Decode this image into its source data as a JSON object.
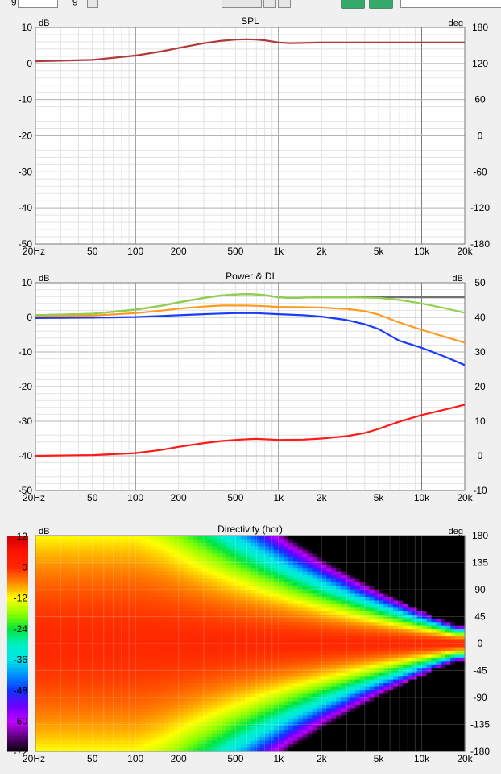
{
  "toolbar": {
    "label1": "g",
    "label2": "g"
  },
  "chart_data": [
    {
      "type": "line",
      "title": "SPL",
      "y_unit": "dB",
      "y2_unit": "deg",
      "x_scale": "log",
      "xlim": [
        20,
        20000
      ],
      "ylim": [
        -50,
        10
      ],
      "y2lim": [
        -180,
        180
      ],
      "x_ticks": [
        {
          "v": 20,
          "label": "20Hz"
        },
        {
          "v": 50,
          "label": "50"
        },
        {
          "v": 100,
          "label": "100"
        },
        {
          "v": 200,
          "label": "200"
        },
        {
          "v": 500,
          "label": "500"
        },
        {
          "v": 1000,
          "label": "1k"
        },
        {
          "v": 2000,
          "label": "2k"
        },
        {
          "v": 5000,
          "label": "5k"
        },
        {
          "v": 10000,
          "label": "10k"
        },
        {
          "v": 20000,
          "label": "20k"
        }
      ],
      "y_ticks": [
        {
          "v": 10,
          "label": "10"
        },
        {
          "v": 0,
          "label": "0"
        },
        {
          "v": -10,
          "label": "-10"
        },
        {
          "v": -20,
          "label": "-20"
        },
        {
          "v": -30,
          "label": "-30"
        },
        {
          "v": -40,
          "label": "-40"
        },
        {
          "v": -50,
          "label": "-50"
        }
      ],
      "y2_ticks": [
        {
          "v": 180,
          "label": "180"
        },
        {
          "v": 120,
          "label": "120"
        },
        {
          "v": 60,
          "label": "60"
        },
        {
          "v": 0,
          "label": "0"
        },
        {
          "v": -60,
          "label": "-60"
        },
        {
          "v": -120,
          "label": "-120"
        },
        {
          "v": -180,
          "label": "-180"
        }
      ],
      "grid": true,
      "series": [
        {
          "color": "#b03a3a",
          "x": [
            20,
            50,
            100,
            150,
            200,
            300,
            400,
            500,
            600,
            700,
            800,
            900,
            1000,
            1200,
            1500,
            2000,
            5000,
            10000,
            20000
          ],
          "y": [
            0.6,
            1.0,
            2.2,
            3.3,
            4.3,
            5.6,
            6.3,
            6.6,
            6.7,
            6.6,
            6.4,
            6.1,
            5.8,
            5.6,
            5.7,
            5.8,
            5.8,
            5.8,
            5.8
          ]
        }
      ]
    },
    {
      "type": "line",
      "title": "Power & DI",
      "y_unit": "dB",
      "y2_unit": "dB",
      "x_scale": "log",
      "xlim": [
        20,
        20000
      ],
      "ylim": [
        -50,
        10
      ],
      "y2lim": [
        -10,
        50
      ],
      "x_ticks": [
        {
          "v": 20,
          "label": "20Hz"
        },
        {
          "v": 50,
          "label": "50"
        },
        {
          "v": 100,
          "label": "100"
        },
        {
          "v": 200,
          "label": "200"
        },
        {
          "v": 500,
          "label": "500"
        },
        {
          "v": 1000,
          "label": "1k"
        },
        {
          "v": 2000,
          "label": "2k"
        },
        {
          "v": 5000,
          "label": "5k"
        },
        {
          "v": 10000,
          "label": "10k"
        },
        {
          "v": 20000,
          "label": "20k"
        }
      ],
      "y_ticks": [
        {
          "v": 10,
          "label": "10"
        },
        {
          "v": 0,
          "label": "0"
        },
        {
          "v": -10,
          "label": "-10"
        },
        {
          "v": -20,
          "label": "-20"
        },
        {
          "v": -30,
          "label": "-30"
        },
        {
          "v": -40,
          "label": "-40"
        },
        {
          "v": -50,
          "label": "-50"
        }
      ],
      "y2_ticks": [
        {
          "v": 50,
          "label": "50"
        },
        {
          "v": 40,
          "label": "40"
        },
        {
          "v": 30,
          "label": "30"
        },
        {
          "v": 20,
          "label": "20"
        },
        {
          "v": 10,
          "label": "10"
        },
        {
          "v": 0,
          "label": "0"
        },
        {
          "v": -10,
          "label": "-10"
        }
      ],
      "grid": true,
      "series": [
        {
          "color": "#707070",
          "axis": "left",
          "x": [
            20,
            50,
            100,
            150,
            200,
            300,
            400,
            500,
            600,
            700,
            800,
            1000,
            1200,
            1500,
            2000,
            5000,
            10000,
            20000
          ],
          "y": [
            0.6,
            1.0,
            2.2,
            3.3,
            4.3,
            5.6,
            6.3,
            6.6,
            6.7,
            6.6,
            6.4,
            5.8,
            5.6,
            5.7,
            5.8,
            5.8,
            5.8,
            5.8
          ]
        },
        {
          "color": "#8fd14f",
          "axis": "left",
          "x": [
            20,
            50,
            100,
            150,
            200,
            300,
            400,
            500,
            600,
            700,
            800,
            1000,
            1200,
            1500,
            2000,
            3000,
            5000,
            7000,
            10000,
            15000,
            20000
          ],
          "y": [
            0.6,
            1.0,
            2.2,
            3.3,
            4.3,
            5.6,
            6.3,
            6.6,
            6.7,
            6.6,
            6.4,
            5.8,
            5.6,
            5.7,
            5.8,
            5.8,
            5.6,
            5.0,
            4.0,
            2.5,
            1.3
          ]
        },
        {
          "color": "#ff9a1f",
          "axis": "left",
          "x": [
            20,
            50,
            100,
            150,
            200,
            300,
            400,
            500,
            600,
            700,
            800,
            1000,
            1500,
            2000,
            3000,
            4000,
            5000,
            7000,
            10000,
            15000,
            20000
          ],
          "y": [
            0.2,
            0.5,
            1.2,
            1.9,
            2.5,
            3.1,
            3.4,
            3.4,
            3.4,
            3.3,
            3.2,
            3.0,
            2.9,
            2.8,
            2.4,
            1.8,
            0.8,
            -1.5,
            -3.6,
            -5.8,
            -7.3
          ]
        },
        {
          "color": "#1a3cff",
          "axis": "left",
          "x": [
            20,
            50,
            100,
            150,
            200,
            300,
            400,
            500,
            600,
            700,
            800,
            1000,
            1500,
            2000,
            3000,
            4000,
            5000,
            7000,
            10000,
            15000,
            20000
          ],
          "y": [
            -0.2,
            -0.1,
            0.1,
            0.4,
            0.6,
            0.9,
            1.1,
            1.2,
            1.2,
            1.2,
            1.1,
            0.9,
            0.6,
            0.2,
            -0.8,
            -2.0,
            -3.4,
            -6.8,
            -8.8,
            -11.6,
            -13.8
          ]
        },
        {
          "color": "#ff1a1a",
          "axis": "right",
          "x": [
            20,
            50,
            100,
            150,
            200,
            300,
            400,
            500,
            600,
            700,
            800,
            1000,
            1500,
            2000,
            3000,
            4000,
            5000,
            7000,
            10000,
            15000,
            20000
          ],
          "y": [
            0.0,
            0.2,
            0.8,
            1.7,
            2.6,
            3.7,
            4.3,
            4.6,
            4.8,
            4.9,
            4.8,
            4.6,
            4.7,
            5.0,
            5.7,
            6.6,
            7.8,
            9.9,
            11.8,
            13.5,
            14.8
          ]
        }
      ]
    },
    {
      "type": "heatmap",
      "title": "Directivity (hor)",
      "y_unit": "deg",
      "colorbar_unit": "dB",
      "x_scale": "log",
      "xlim": [
        20,
        20000
      ],
      "ylim": [
        -180,
        180
      ],
      "colorbar_range": [
        -72,
        12
      ],
      "x_ticks": [
        {
          "v": 20,
          "label": "20Hz"
        },
        {
          "v": 50,
          "label": "50"
        },
        {
          "v": 100,
          "label": "100"
        },
        {
          "v": 200,
          "label": "200"
        },
        {
          "v": 500,
          "label": "500"
        },
        {
          "v": 1000,
          "label": "1k"
        },
        {
          "v": 2000,
          "label": "2k"
        },
        {
          "v": 5000,
          "label": "5k"
        },
        {
          "v": 10000,
          "label": "10k"
        },
        {
          "v": 20000,
          "label": "20k"
        }
      ],
      "y_ticks": [
        {
          "v": 180,
          "label": "180"
        },
        {
          "v": 135,
          "label": "135"
        },
        {
          "v": 90,
          "label": "90"
        },
        {
          "v": 45,
          "label": "45"
        },
        {
          "v": 0,
          "label": "0"
        },
        {
          "v": -45,
          "label": "-45"
        },
        {
          "v": -90,
          "label": "-90"
        },
        {
          "v": -135,
          "label": "-135"
        },
        {
          "v": -180,
          "label": "-180"
        }
      ],
      "colorbar_ticks": [
        {
          "v": 12,
          "label": "12"
        },
        {
          "v": 0,
          "label": "0"
        },
        {
          "v": -12,
          "label": "-12"
        },
        {
          "v": -24,
          "label": "-24"
        },
        {
          "v": -36,
          "label": "-36"
        },
        {
          "v": -48,
          "label": "-48"
        },
        {
          "v": -60,
          "label": "-60"
        },
        {
          "v": -72,
          "label": "-72"
        }
      ],
      "colors": {
        "red": "#ff1a00",
        "orange": "#ff8c00",
        "yellow": "#ffff00",
        "green": "#00e040",
        "cyan": "#00e5e5",
        "blue": "#1030ff",
        "magenta": "#c000ff",
        "black": "#000000"
      }
    }
  ]
}
